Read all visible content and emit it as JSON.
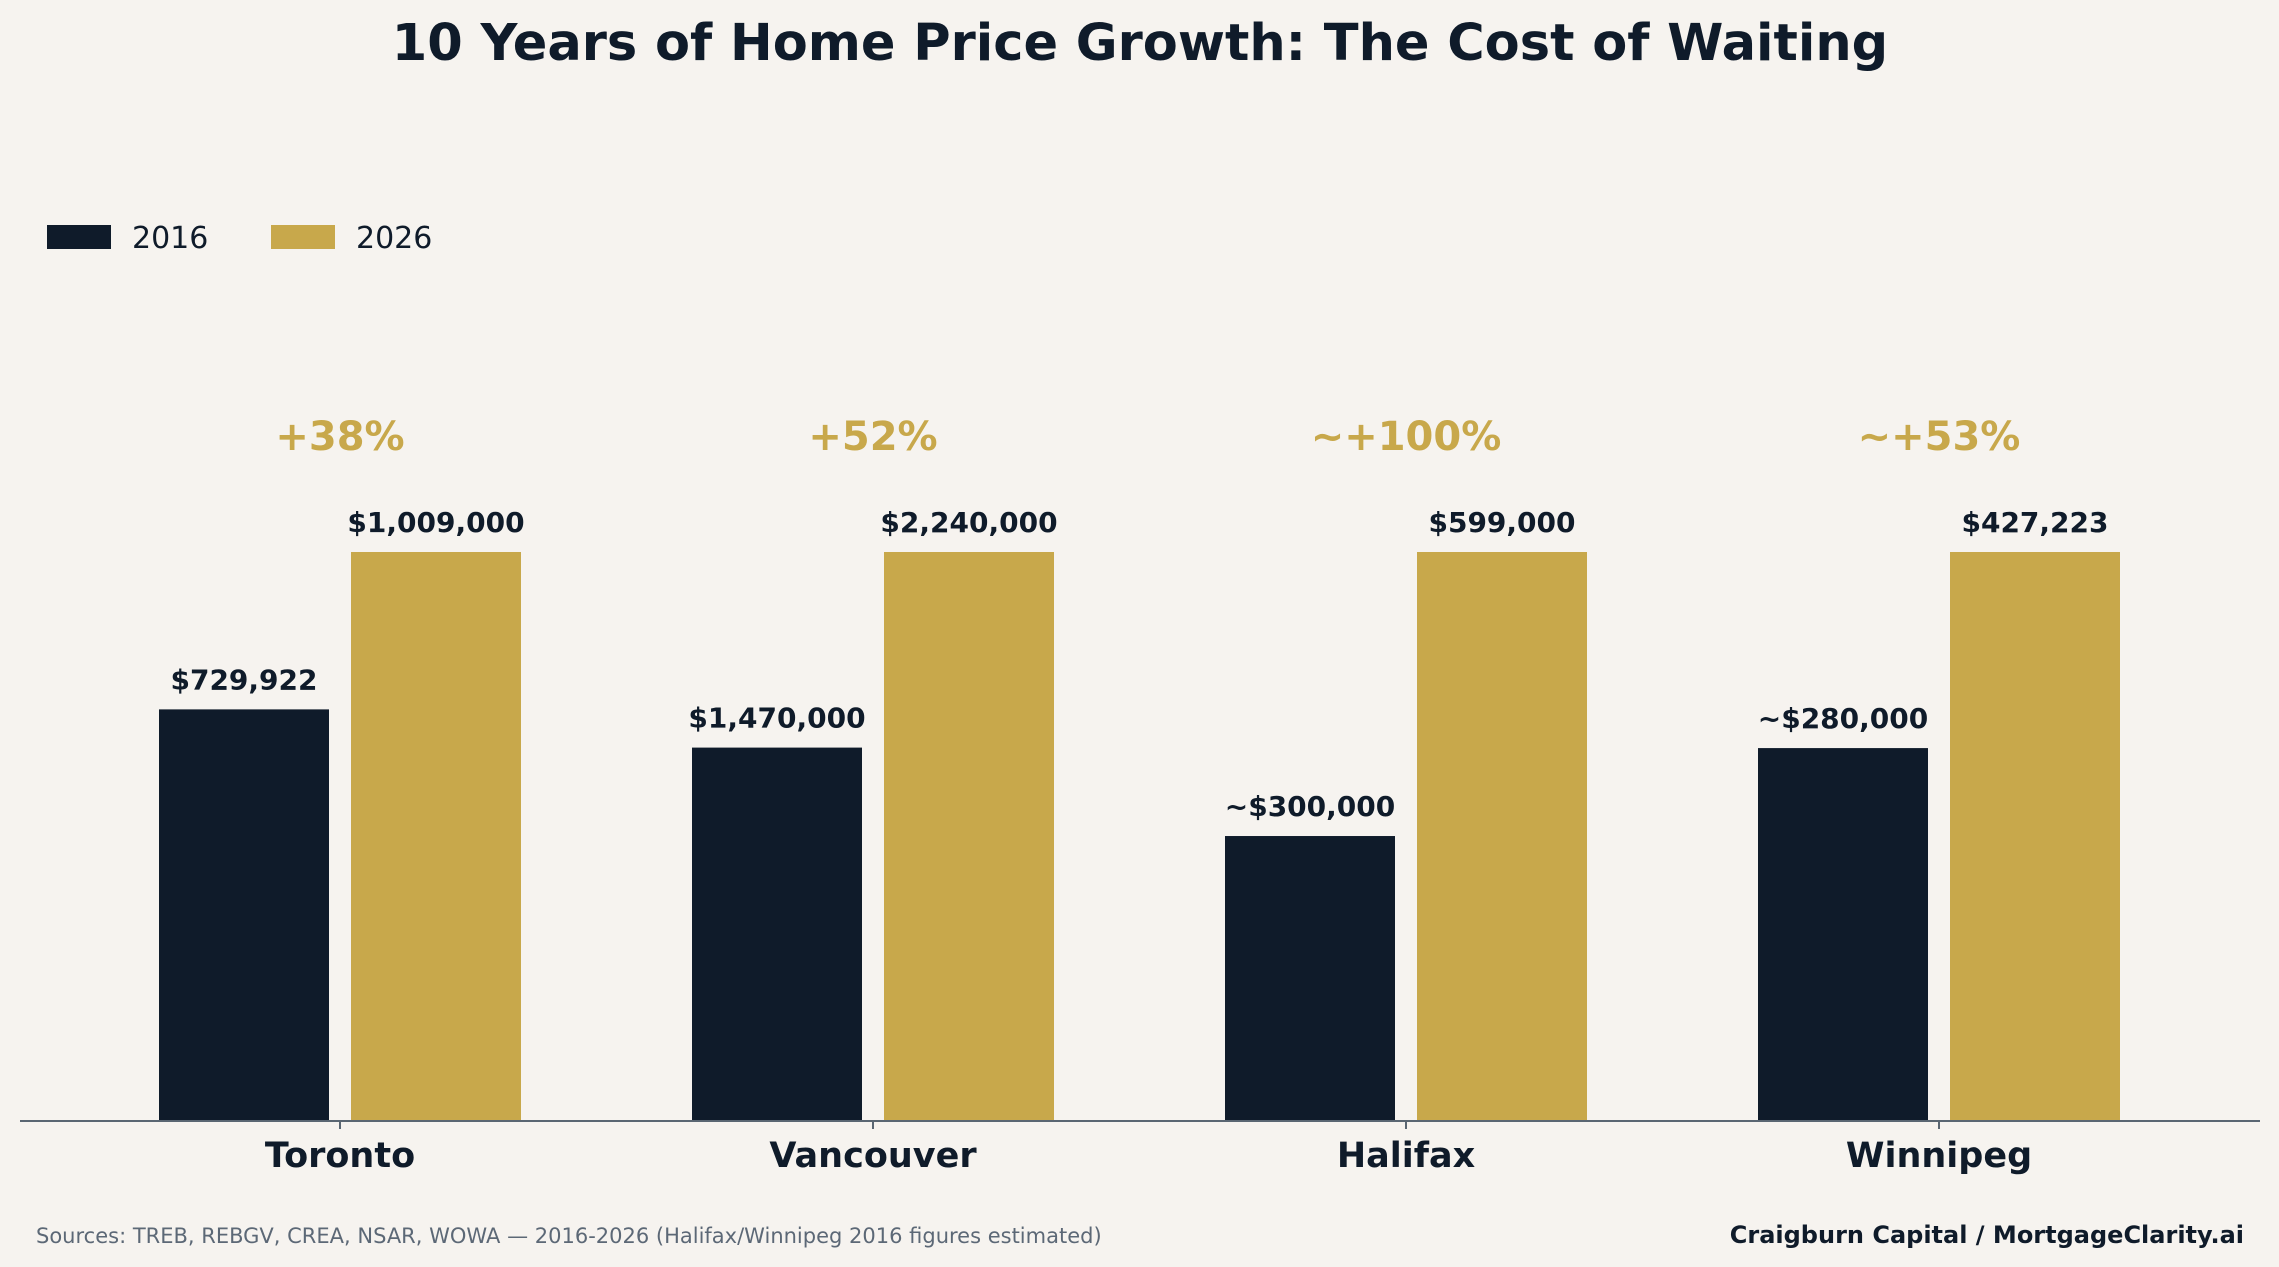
{
  "chart_data": {
    "type": "bar",
    "title": "10 Years of Home Price Growth: The Cost of Waiting",
    "xlabel": "",
    "ylabel": "",
    "normalized_per_city": true,
    "categories": [
      "Toronto",
      "Vancouver",
      "Halifax",
      "Winnipeg"
    ],
    "series": [
      {
        "name": "2016",
        "color": "#0f1b2a",
        "values": [
          729922,
          1470000,
          300000,
          280000
        ],
        "labels": [
          "$729,922",
          "$1,470,000",
          "~$300,000",
          "~$280,000"
        ]
      },
      {
        "name": "2026",
        "color": "#c8a84b",
        "values": [
          1009000,
          2240000,
          599000,
          427223
        ],
        "labels": [
          "$1,009,000",
          "$2,240,000",
          "$599,000",
          "$427,223"
        ]
      }
    ],
    "growth_labels": [
      "+38%",
      "+52%",
      "~+100%",
      "~+53%"
    ],
    "growth_color": "#c8a84b",
    "axis_color": "#5a6672",
    "grid": false,
    "legend_position": "top-left",
    "source": "Sources: TREB, REBGV, CREA, NSAR, WOWA — 2016-2026 (Halifax/Winnipeg 2016 figures estimated)",
    "credit": "Craigburn Capital / MortgageClarity.ai"
  }
}
